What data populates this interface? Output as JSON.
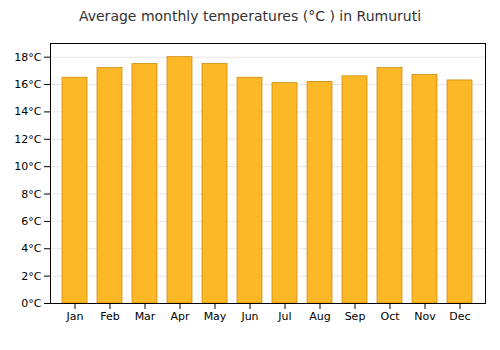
{
  "chart_data": {
    "type": "bar",
    "title": "Average monthly temperatures (°C ) in Rumuruti",
    "categories": [
      "Jan",
      "Feb",
      "Mar",
      "Apr",
      "May",
      "Jun",
      "Jul",
      "Aug",
      "Sep",
      "Oct",
      "Nov",
      "Dec"
    ],
    "values": [
      16.5,
      17.2,
      17.5,
      18.0,
      17.5,
      16.5,
      16.1,
      16.2,
      16.6,
      17.2,
      16.7,
      16.3
    ],
    "color": "#FDB827",
    "ylim": [
      0,
      19
    ],
    "yticks": [
      {
        "value": 0,
        "label": "0°C"
      },
      {
        "value": 2,
        "label": "2°C"
      },
      {
        "value": 4,
        "label": "4°C"
      },
      {
        "value": 6,
        "label": "6°C"
      },
      {
        "value": 8,
        "label": "8°C"
      },
      {
        "value": 10,
        "label": "10°C"
      },
      {
        "value": 12,
        "label": "12°C"
      },
      {
        "value": 14,
        "label": "14°C"
      },
      {
        "value": 16,
        "label": "16°C"
      },
      {
        "value": 18,
        "label": "18°C"
      }
    ],
    "grid": true
  }
}
